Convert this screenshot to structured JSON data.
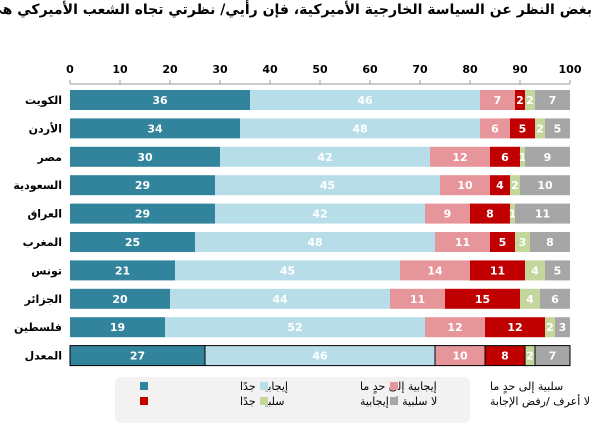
{
  "title": "بغض النظر عن السياسة الخارجية الأميركية، فإن رأيي/ نظرتي تجاه الشعب الأميركي هي ...",
  "chart_data": {
    "type": "bar",
    "orientation": "horizontal-stacked",
    "xlim": [
      0,
      100
    ],
    "ticks": [
      0,
      10,
      20,
      30,
      40,
      50,
      60,
      70,
      80,
      90,
      100
    ],
    "grid": false,
    "legend_position": "bottom",
    "categories": [
      "الكويت",
      "الأردن",
      "مصر",
      "السعودية",
      "العراق",
      "المغرب",
      "تونس",
      "الجزائر",
      "فلسطين",
      "المعدل"
    ],
    "series": [
      {
        "name": "إيجابية جدًا",
        "color": "#31849b",
        "values": [
          36,
          34,
          30,
          29,
          29,
          25,
          21,
          20,
          19,
          27
        ]
      },
      {
        "name": "إيجابية إلى حدٍ ما",
        "color": "#b7dee8",
        "values": [
          46,
          48,
          42,
          45,
          42,
          48,
          45,
          44,
          52,
          46
        ]
      },
      {
        "name": "سلبية إلى حدٍ ما",
        "color": "#e6959a",
        "values": [
          7,
          6,
          12,
          10,
          9,
          11,
          14,
          11,
          12,
          10
        ]
      },
      {
        "name": "سلبية جدًا",
        "color": "#c00000",
        "values": [
          2,
          5,
          6,
          4,
          8,
          5,
          11,
          15,
          12,
          8
        ]
      },
      {
        "name": "لا سلبية لا إيجابية",
        "color": "#c3d69b",
        "values": [
          2,
          2,
          1,
          2,
          1,
          3,
          4,
          4,
          2,
          2
        ]
      },
      {
        "name": "لا أعرف /رفض الإجابة",
        "color": "#a6a6a6",
        "values": [
          7,
          5,
          9,
          10,
          11,
          8,
          5,
          6,
          3,
          7
        ]
      }
    ]
  }
}
